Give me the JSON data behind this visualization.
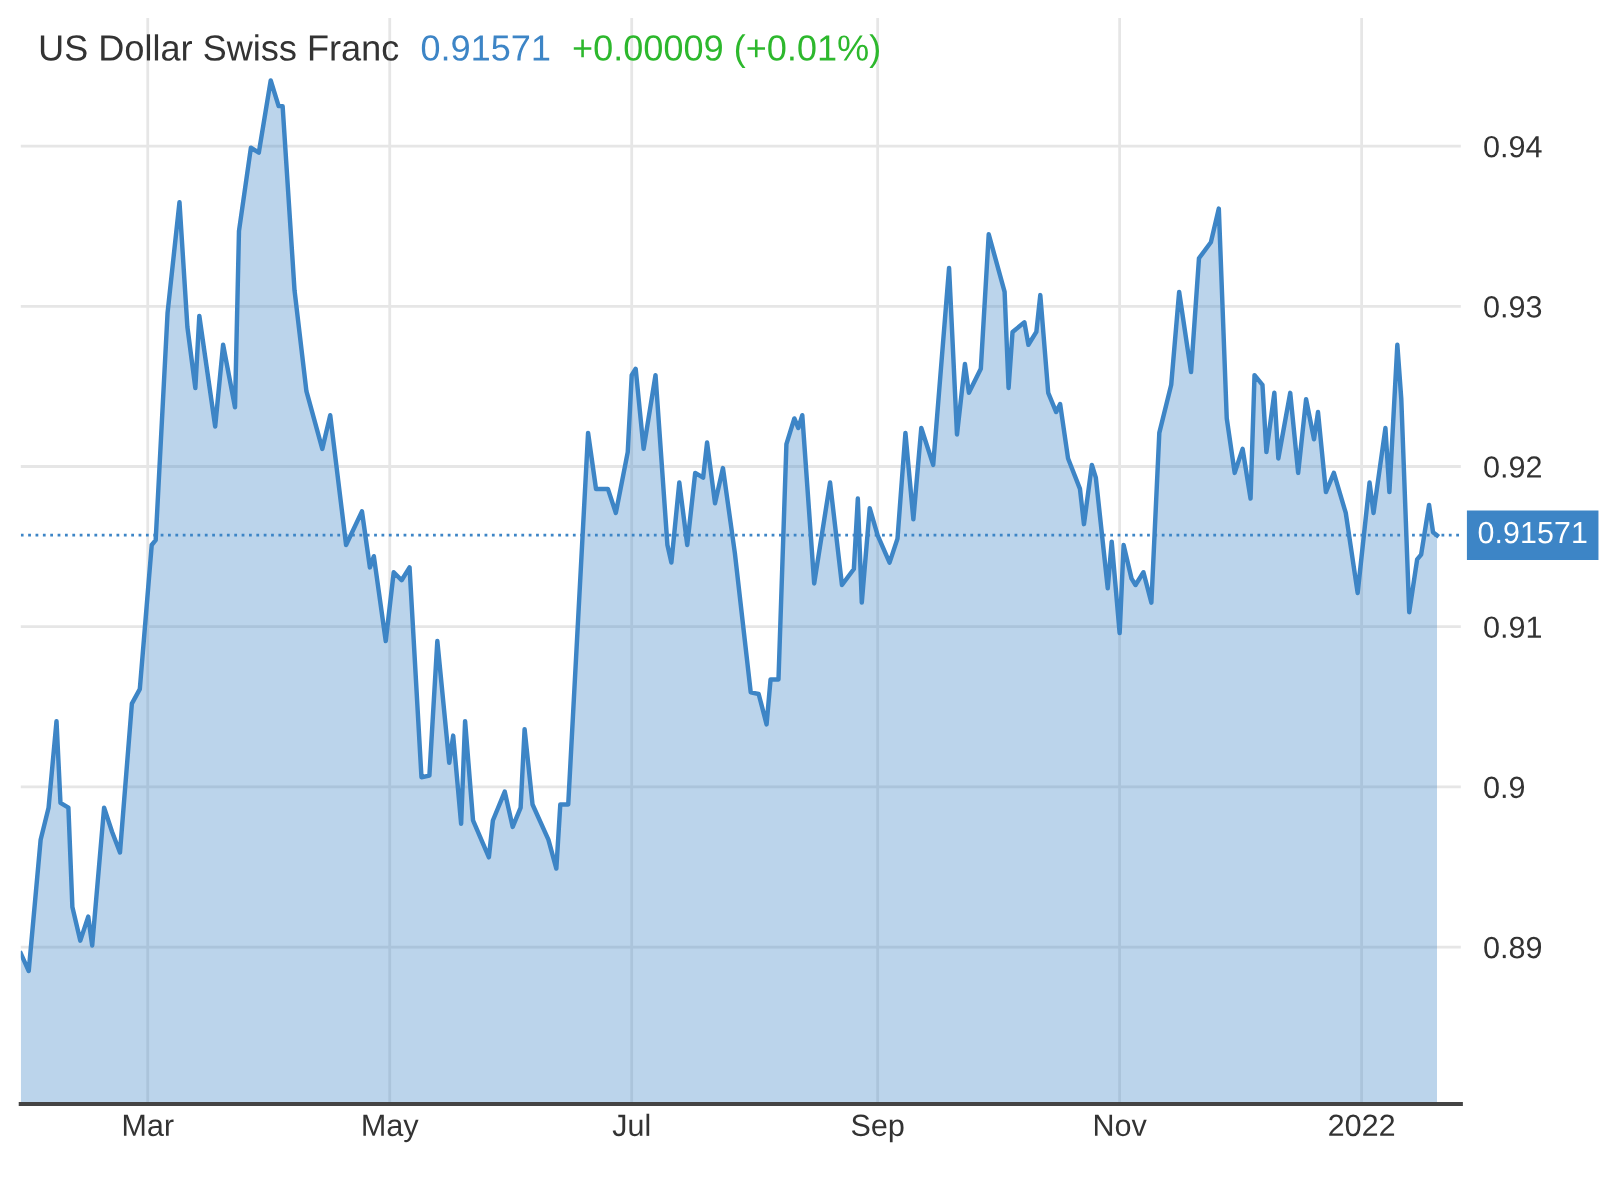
{
  "chart_data": {
    "type": "area",
    "title": "US Dollar Swiss Franc",
    "subtitle": "0.91571",
    "annotations": [
      "+0.00009 (+0.01%)"
    ],
    "x": [
      "2021-01-28",
      "2021-01-30",
      "2021-02-02",
      "2021-02-04",
      "2021-02-06",
      "2021-02-07",
      "2021-02-09",
      "2021-02-10",
      "2021-02-12",
      "2021-02-14",
      "2021-02-15",
      "2021-02-18",
      "2021-02-20",
      "2021-02-22",
      "2021-02-25",
      "2021-02-27",
      "2021-03-02",
      "2021-03-03",
      "2021-03-06",
      "2021-03-09",
      "2021-03-11",
      "2021-03-13",
      "2021-03-14",
      "2021-03-18",
      "2021-03-20",
      "2021-03-23",
      "2021-03-24",
      "2021-03-27",
      "2021-03-29",
      "2021-04-01",
      "2021-04-03",
      "2021-04-04",
      "2021-04-07",
      "2021-04-10",
      "2021-04-14",
      "2021-04-16",
      "2021-04-20",
      "2021-04-24",
      "2021-04-26",
      "2021-04-27",
      "2021-04-30",
      "2021-05-02",
      "2021-05-04",
      "2021-05-06",
      "2021-05-09",
      "2021-05-11",
      "2021-05-13",
      "2021-05-16",
      "2021-05-17",
      "2021-05-19",
      "2021-05-20",
      "2021-05-22",
      "2021-05-26",
      "2021-05-27",
      "2021-05-30",
      "2021-06-01",
      "2021-06-03",
      "2021-06-04",
      "2021-06-06",
      "2021-06-10",
      "2021-06-12",
      "2021-06-13",
      "2021-06-15",
      "2021-06-20",
      "2021-06-22",
      "2021-06-25",
      "2021-06-27",
      "2021-06-30",
      "2021-07-01",
      "2021-07-02",
      "2021-07-04",
      "2021-07-07",
      "2021-07-10",
      "2021-07-11",
      "2021-07-13",
      "2021-07-15",
      "2021-07-17",
      "2021-07-19",
      "2021-07-20",
      "2021-07-22",
      "2021-07-24",
      "2021-07-27",
      "2021-07-31",
      "2021-08-02",
      "2021-08-04",
      "2021-08-05",
      "2021-08-07",
      "2021-08-09",
      "2021-08-11",
      "2021-08-12",
      "2021-08-13",
      "2021-08-16",
      "2021-08-20",
      "2021-08-23",
      "2021-08-26",
      "2021-08-27",
      "2021-08-28",
      "2021-08-30",
      "2021-09-01",
      "2021-09-04",
      "2021-09-06",
      "2021-09-08",
      "2021-09-10",
      "2021-09-12",
      "2021-09-15",
      "2021-09-19",
      "2021-09-21",
      "2021-09-23",
      "2021-09-24",
      "2021-09-27",
      "2021-09-29",
      "2021-10-03",
      "2021-10-04",
      "2021-10-05",
      "2021-10-08",
      "2021-10-09",
      "2021-10-11",
      "2021-10-12",
      "2021-10-14",
      "2021-10-16",
      "2021-10-17",
      "2021-10-19",
      "2021-10-22",
      "2021-10-23",
      "2021-10-25",
      "2021-10-26",
      "2021-10-29",
      "2021-10-30",
      "2021-11-01",
      "2021-11-02",
      "2021-11-04",
      "2021-11-05",
      "2021-11-07",
      "2021-11-09",
      "2021-11-11",
      "2021-11-14",
      "2021-11-16",
      "2021-11-19",
      "2021-11-21",
      "2021-11-24",
      "2021-11-26",
      "2021-11-28",
      "2021-11-30",
      "2021-12-02",
      "2021-12-04",
      "2021-12-05",
      "2021-12-07",
      "2021-12-08",
      "2021-12-10",
      "2021-12-11",
      "2021-12-14",
      "2021-12-16",
      "2021-12-18",
      "2021-12-20",
      "2021-12-21",
      "2021-12-23",
      "2021-12-25",
      "2021-12-28",
      "2021-12-31",
      "2022-01-03",
      "2022-01-04",
      "2022-01-07",
      "2022-01-08",
      "2022-01-10",
      "2022-01-11",
      "2022-01-13",
      "2022-01-15",
      "2022-01-16",
      "2022-01-18",
      "2022-01-19",
      "2022-01-20"
    ],
    "series": [
      {
        "color": "#3d85c6",
        "values": [
          0.8896,
          0.8885,
          0.8967,
          0.8987,
          0.9041,
          0.899,
          0.8987,
          0.8925,
          0.8904,
          0.8919,
          0.8901,
          0.8987,
          0.8972,
          0.8959,
          0.9052,
          0.9061,
          0.9151,
          0.9154,
          0.9296,
          0.9365,
          0.9287,
          0.9249,
          0.9294,
          0.9225,
          0.9276,
          0.9237,
          0.9347,
          0.9399,
          0.9396,
          0.9441,
          0.9425,
          0.9425,
          0.931,
          0.9247,
          0.9211,
          0.9232,
          0.9151,
          0.9172,
          0.9137,
          0.9144,
          0.9091,
          0.9134,
          0.9129,
          0.9137,
          0.9006,
          0.9007,
          0.9091,
          0.9015,
          0.9032,
          0.8977,
          0.9041,
          0.8979,
          0.8956,
          0.8979,
          0.8997,
          0.8975,
          0.8987,
          0.9036,
          0.8989,
          0.8967,
          0.8949,
          0.8989,
          0.8989,
          0.9221,
          0.9186,
          0.9186,
          0.9171,
          0.9209,
          0.9257,
          0.9261,
          0.9211,
          0.9257,
          0.9151,
          0.914,
          0.919,
          0.9151,
          0.9196,
          0.9193,
          0.9215,
          0.9177,
          0.9199,
          0.9146,
          0.9059,
          0.9058,
          0.9039,
          0.9067,
          0.9067,
          0.9214,
          0.923,
          0.9224,
          0.9232,
          0.9127,
          0.919,
          0.9126,
          0.9136,
          0.918,
          0.9115,
          0.9174,
          0.9157,
          0.914,
          0.9155,
          0.9221,
          0.9167,
          0.9224,
          0.9201,
          0.9324,
          0.922,
          0.9264,
          0.9246,
          0.9261,
          0.9345,
          0.9309,
          0.9249,
          0.9284,
          0.929,
          0.9276,
          0.9284,
          0.9307,
          0.9246,
          0.9234,
          0.9239,
          0.9205,
          0.9186,
          0.9164,
          0.9201,
          0.9193,
          0.9124,
          0.9153,
          0.9096,
          0.9151,
          0.913,
          0.9126,
          0.9134,
          0.9115,
          0.9221,
          0.9251,
          0.9309,
          0.9259,
          0.933,
          0.934,
          0.9361,
          0.923,
          0.9196,
          0.9211,
          0.918,
          0.9257,
          0.9251,
          0.9209,
          0.9246,
          0.9205,
          0.9246,
          0.9196,
          0.9242,
          0.9217,
          0.9234,
          0.9184,
          0.9196,
          0.9171,
          0.9121,
          0.919,
          0.9171,
          0.9224,
          0.9184,
          0.9276,
          0.9242,
          0.9109,
          0.9142,
          0.9145,
          0.9176,
          0.9159,
          0.9157
        ]
      }
    ],
    "xlim": [
      "2021-01-28",
      "2022-01-26"
    ],
    "ylim": [
      0.8802,
      0.948
    ],
    "xticks": [
      {
        "value": "2021-03-01",
        "label": "Mar"
      },
      {
        "value": "2021-05-01",
        "label": "May"
      },
      {
        "value": "2021-07-01",
        "label": "Jul"
      },
      {
        "value": "2021-09-01",
        "label": "Sep"
      },
      {
        "value": "2021-11-01",
        "label": "Nov"
      },
      {
        "value": "2022-01-01",
        "label": "2022"
      }
    ],
    "yticks": [
      0.89,
      0.9,
      0.91,
      0.92,
      0.93,
      0.94
    ],
    "ref_lines": [
      {
        "axis": "y",
        "value": 0.91571,
        "label": "0.91571",
        "color": "#3d85c6",
        "line_style": "dotted"
      }
    ],
    "grid": true
  }
}
